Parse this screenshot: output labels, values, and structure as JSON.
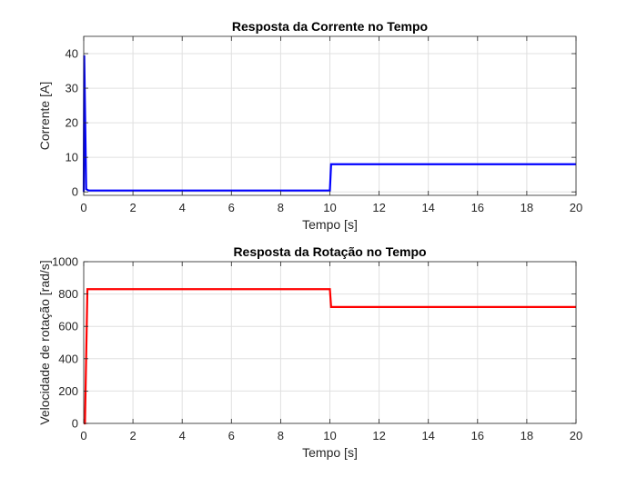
{
  "chart_data": [
    {
      "type": "line",
      "title": "Resposta da Corrente no Tempo",
      "xlabel": "Tempo [s]",
      "ylabel": "Corrente [A]",
      "xlim": [
        0,
        20
      ],
      "ylim": [
        -1,
        45
      ],
      "xticks": [
        0,
        2,
        4,
        6,
        8,
        10,
        12,
        14,
        16,
        18,
        20
      ],
      "yticks": [
        0,
        10,
        20,
        30,
        40
      ],
      "grid": true,
      "series": [
        {
          "color": "#0000ff",
          "x": [
            0,
            0.02,
            0.1,
            0.2,
            10,
            10,
            10.05,
            20
          ],
          "y": [
            0,
            39.5,
            0.8,
            0.4,
            0.4,
            0.4,
            8,
            8
          ]
        }
      ]
    },
    {
      "type": "line",
      "title": "Resposta da Rotação no Tempo",
      "xlabel": "Tempo [s]",
      "ylabel": "Velocidade de rotação [rad/s]",
      "xlim": [
        0,
        20
      ],
      "ylim": [
        0,
        1000
      ],
      "xticks": [
        0,
        2,
        4,
        6,
        8,
        10,
        12,
        14,
        16,
        18,
        20
      ],
      "yticks": [
        0,
        200,
        400,
        600,
        800,
        1000
      ],
      "grid": true,
      "series": [
        {
          "color": "#ff0000",
          "x": [
            0,
            0.05,
            0.15,
            10,
            10.05,
            20
          ],
          "y": [
            0,
            0,
            830,
            830,
            720,
            720
          ]
        }
      ]
    }
  ]
}
